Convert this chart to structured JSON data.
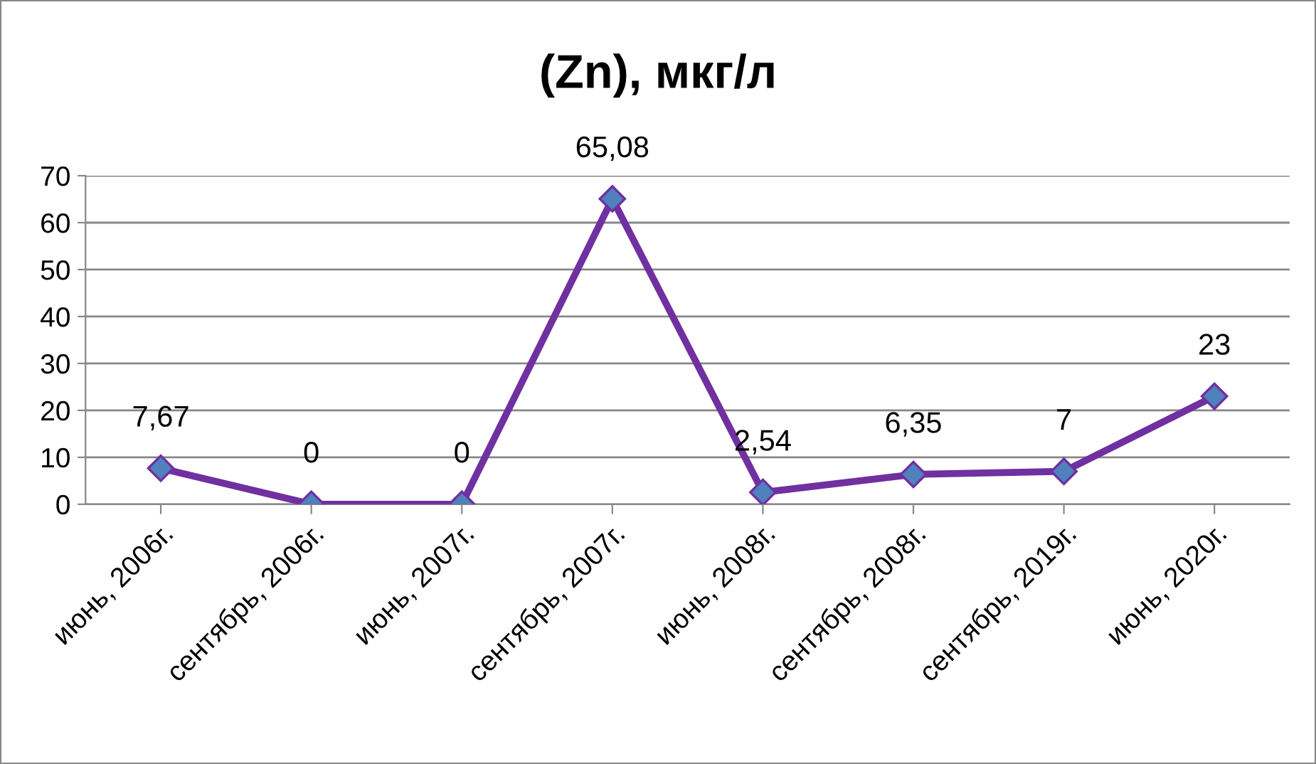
{
  "chart_data": {
    "type": "line",
    "title": "(Zn), мкг/л",
    "categories": [
      "июнь, 2006г.",
      "сентябрь, 2006г.",
      "июнь, 2007г.",
      "сентябрь, 2007г.",
      "июнь, 2008г.",
      "сентябрь, 2008г.",
      "сентябрь, 2019г.",
      "июнь, 2020г."
    ],
    "series": [
      {
        "color": "#7030a0",
        "values": [
          7.67,
          0,
          0,
          65.08,
          2.54,
          6.35,
          7,
          23
        ],
        "value_labels": [
          "7,67",
          "0",
          "0",
          "65,08",
          "2,54",
          "6,35",
          "7",
          "23"
        ]
      }
    ],
    "ylim": [
      0,
      70
    ],
    "yticks": [
      0,
      10,
      20,
      30,
      40,
      50,
      60,
      70
    ],
    "grid": "y",
    "marker": "diamond",
    "line_style": "solid"
  }
}
